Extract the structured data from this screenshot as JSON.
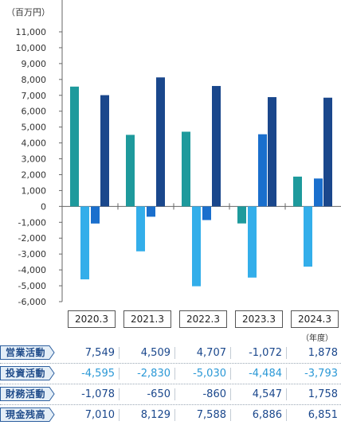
{
  "chart_data": {
    "type": "bar",
    "unit_label": "（百万円）",
    "year_unit": "（年度）",
    "categories": [
      "2020.3",
      "2021.3",
      "2022.3",
      "2023.3",
      "2024.3"
    ],
    "ylim": [
      -6000,
      11000
    ],
    "yticks": [
      11000,
      10000,
      9000,
      8000,
      7000,
      6000,
      5000,
      4000,
      3000,
      2000,
      1000,
      0,
      -1000,
      -2000,
      -3000,
      -4000,
      -5000,
      -6000
    ],
    "ytick_labels": [
      "11,000",
      "10,000",
      "9,000",
      "8,000",
      "7,000",
      "6,000",
      "5,000",
      "4,000",
      "3,000",
      "2,000",
      "1,000",
      "0",
      "-1,000",
      "-2,000",
      "-3,000",
      "-4,000",
      "-5,000",
      "-6,000"
    ],
    "series": [
      {
        "name": "営業活動",
        "color": "#1e9a9c",
        "values": [
          7549,
          4509,
          4707,
          -1072,
          1878
        ],
        "labels": [
          "7,549",
          "4,509",
          "4,707",
          "-1,072",
          "1,878"
        ]
      },
      {
        "name": "投資活動",
        "color": "#33aeea",
        "values": [
          -4595,
          -2830,
          -5030,
          -4484,
          -3793
        ],
        "labels": [
          "-4,595",
          "-2,830",
          "-5,030",
          "-4,484",
          "-3,793"
        ]
      },
      {
        "name": "財務活動",
        "color": "#1a6fcd",
        "values": [
          -1078,
          -650,
          -860,
          4547,
          1758
        ],
        "labels": [
          "-1,078",
          "-650",
          "-860",
          "4,547",
          "1,758"
        ]
      },
      {
        "name": "現金残高",
        "color": "#1a478c",
        "values": [
          7010,
          8129,
          7588,
          6886,
          6851
        ],
        "labels": [
          "7,010",
          "8,129",
          "7,588",
          "6,886",
          "6,851"
        ]
      }
    ],
    "grid": false,
    "legend": "table-below"
  },
  "label_style": {
    "bg": "#e4eef7",
    "border": "#2c5e9e",
    "text_color": "#1f4b8a"
  }
}
